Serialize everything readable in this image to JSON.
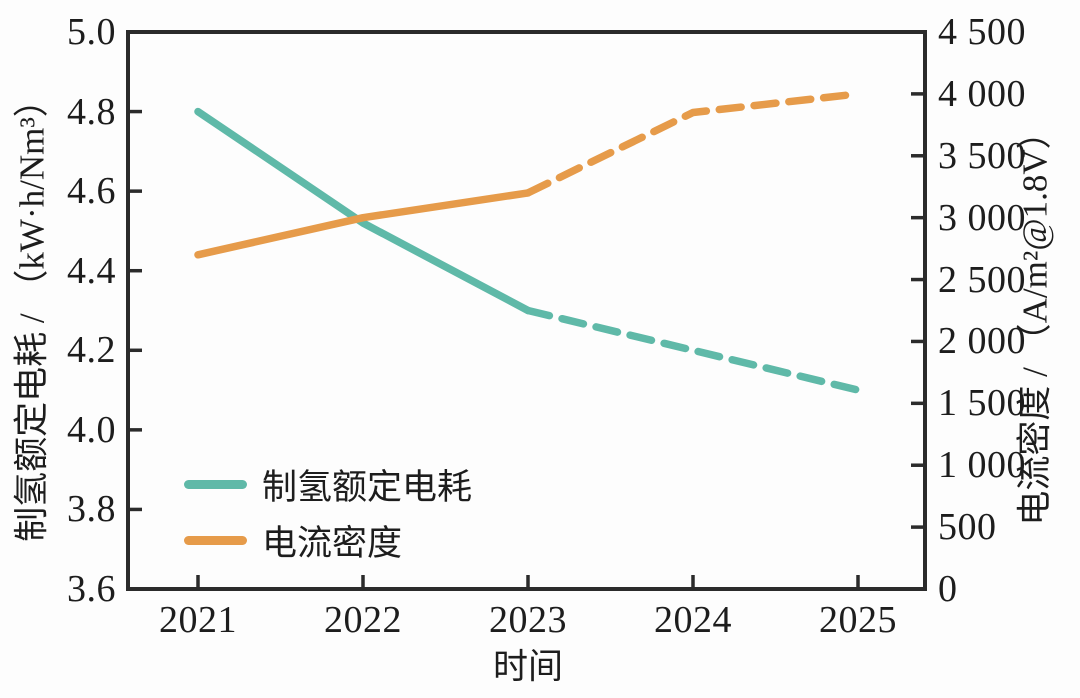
{
  "chart_data": {
    "type": "line",
    "x": [
      2021,
      2022,
      2023,
      2024,
      2025
    ],
    "x_tick_labels": [
      "2021",
      "2022",
      "2023",
      "2024",
      "2025"
    ],
    "xlabel": "时间",
    "left_axis": {
      "label": "制氢额定电耗 / （kW·h/Nm³）",
      "range": [
        3.6,
        5.0
      ],
      "tick_labels": [
        "5.0",
        "4.8",
        "4.6",
        "4.4",
        "4.2",
        "4.0",
        "3.8",
        "3.6"
      ]
    },
    "right_axis": {
      "label": "电流密度 / （A/m²@1.8V）",
      "range": [
        0,
        4500
      ],
      "tick_labels": [
        "4 500",
        "4 000",
        "3 500",
        "3 000",
        "2 500",
        "2 000",
        "1 500",
        "1 000",
        "500",
        "0"
      ]
    },
    "series": [
      {
        "name": "制氢额定电耗",
        "axis": "left",
        "color": "#5fb9a8",
        "values": [
          4.8,
          4.52,
          4.3,
          4.2,
          4.1
        ],
        "solid_until_x": 2023,
        "style_note": "solid through 2023, dashed projection 2023-2025"
      },
      {
        "name": "电流密度",
        "axis": "right",
        "color": "#e69b4a",
        "values": [
          2700,
          3000,
          3200,
          3850,
          4000
        ],
        "solid_until_x": 2023,
        "style_note": "solid through 2023, dashed projection 2023-2025"
      }
    ],
    "legend_position": "lower-left-inside",
    "grid": false
  },
  "colors": {
    "teal_series": "#5fb9a8",
    "orange_series": "#e69b4a",
    "axis_frame": "#2b2b2b",
    "text": "#1d1d1d",
    "background": "#fdfdfd"
  }
}
